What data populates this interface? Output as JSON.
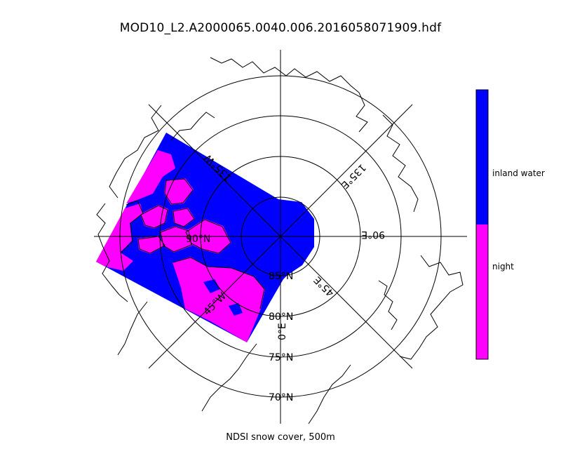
{
  "title": "MOD10_L2.A2000065.0040.006.2016058071909.hdf",
  "caption": "NDSI snow cover, 500m",
  "colors": {
    "inland_water": "#0000ff",
    "night": "#ff00ff",
    "coast": "#000000",
    "grid": "#000000"
  },
  "legend": {
    "classes": [
      {
        "label": "inland water",
        "color": "#0000ff"
      },
      {
        "label": "night",
        "color": "#ff00ff"
      }
    ]
  },
  "map": {
    "projection": "north polar stereographic",
    "center_label": "90°N",
    "lat_labels": [
      "85°N",
      "80°N",
      "75°N",
      "70°N"
    ],
    "lon_labels": [
      "0°E",
      "45°E",
      "90°E",
      "135°E",
      "45°W",
      "135°W"
    ]
  }
}
